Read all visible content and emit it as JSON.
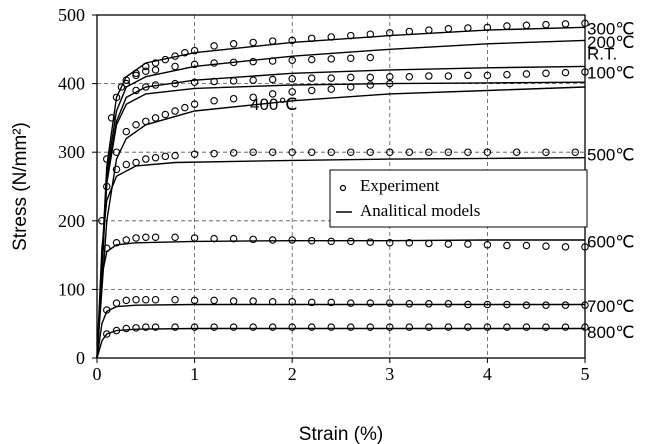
{
  "chart_data": {
    "type": "scatter",
    "title": "",
    "xlabel": "Strain (%)",
    "ylabel": "Stress (N/mm²)",
    "xlim": [
      0,
      5
    ],
    "ylim": [
      0,
      500
    ],
    "xticks": [
      0,
      1,
      2,
      3,
      4,
      5
    ],
    "yticks": [
      0,
      100,
      200,
      300,
      400,
      500
    ],
    "grid": "dashed",
    "legend": {
      "position": "center-right",
      "entries": [
        {
          "label": "Experiment",
          "marker": "circle"
        },
        {
          "label": "Analitical models",
          "marker": "line"
        }
      ]
    },
    "series": [
      {
        "label": "300℃",
        "exp_plateau": 485,
        "model": [
          [
            0,
            0
          ],
          [
            0.1,
            280
          ],
          [
            0.2,
            380
          ],
          [
            0.3,
            410
          ],
          [
            0.5,
            430
          ],
          [
            1,
            445
          ],
          [
            2,
            460
          ],
          [
            3,
            470
          ],
          [
            4,
            478
          ],
          [
            5,
            482
          ]
        ]
      },
      {
        "label": "200℃",
        "exp_plateau": 470,
        "model": [
          [
            0,
            0
          ],
          [
            0.1,
            270
          ],
          [
            0.2,
            360
          ],
          [
            0.3,
            395
          ],
          [
            0.5,
            410
          ],
          [
            1,
            425
          ],
          [
            2,
            440
          ],
          [
            3,
            450
          ],
          [
            4,
            458
          ],
          [
            5,
            463
          ]
        ]
      },
      {
        "label": "R.T.",
        "exp_plateau": 455,
        "model": [
          [
            0,
            0
          ],
          [
            0.1,
            260
          ],
          [
            0.2,
            345
          ],
          [
            0.3,
            380
          ],
          [
            0.5,
            395
          ],
          [
            1,
            405
          ],
          [
            2,
            415
          ],
          [
            3,
            420
          ],
          [
            4,
            423
          ],
          [
            5,
            425
          ]
        ]
      },
      {
        "label": "100℃",
        "exp_plateau": 415,
        "model": [
          [
            0,
            0
          ],
          [
            0.1,
            255
          ],
          [
            0.2,
            340
          ],
          [
            0.3,
            370
          ],
          [
            0.5,
            385
          ],
          [
            1,
            393
          ],
          [
            2,
            398
          ],
          [
            3,
            400
          ],
          [
            4,
            401
          ],
          [
            5,
            402
          ]
        ]
      },
      {
        "label": "400℃",
        "exp_plateau": 420,
        "model": [
          [
            0,
            0
          ],
          [
            0.1,
            200
          ],
          [
            0.2,
            290
          ],
          [
            0.3,
            320
          ],
          [
            0.5,
            340
          ],
          [
            1,
            360
          ],
          [
            2,
            375
          ],
          [
            3,
            385
          ],
          [
            4,
            390
          ],
          [
            5,
            395
          ]
        ]
      },
      {
        "label": "500℃",
        "exp_plateau": 300,
        "model": [
          [
            0,
            0
          ],
          [
            0.05,
            160
          ],
          [
            0.1,
            230
          ],
          [
            0.2,
            265
          ],
          [
            0.4,
            280
          ],
          [
            0.8,
            285
          ],
          [
            2,
            288
          ],
          [
            3,
            290
          ],
          [
            4,
            291
          ],
          [
            5,
            292
          ]
        ]
      },
      {
        "label": "600℃",
        "exp_plateau": 170,
        "model": [
          [
            0,
            0
          ],
          [
            0.05,
            120
          ],
          [
            0.1,
            155
          ],
          [
            0.2,
            165
          ],
          [
            0.4,
            168
          ],
          [
            1,
            170
          ],
          [
            2,
            171
          ],
          [
            3,
            171
          ],
          [
            4,
            172
          ],
          [
            5,
            172
          ]
        ]
      },
      {
        "label": "700℃",
        "exp_plateau": 80,
        "model": [
          [
            0,
            0
          ],
          [
            0.05,
            50
          ],
          [
            0.1,
            68
          ],
          [
            0.2,
            75
          ],
          [
            0.4,
            77
          ],
          [
            1,
            78
          ],
          [
            2,
            78
          ],
          [
            3,
            78
          ],
          [
            4,
            78
          ],
          [
            5,
            78
          ]
        ]
      },
      {
        "label": "800℃",
        "exp_plateau": 44,
        "model": [
          [
            0,
            0
          ],
          [
            0.05,
            25
          ],
          [
            0.1,
            35
          ],
          [
            0.2,
            40
          ],
          [
            0.4,
            42
          ],
          [
            1,
            43
          ],
          [
            2,
            43
          ],
          [
            3,
            43
          ],
          [
            4,
            43
          ],
          [
            5,
            43
          ]
        ]
      }
    ],
    "experiment": [
      {
        "label": "300℃",
        "points": [
          [
            0.05,
            200
          ],
          [
            0.1,
            290
          ],
          [
            0.15,
            350
          ],
          [
            0.2,
            380
          ],
          [
            0.25,
            395
          ],
          [
            0.3,
            405
          ],
          [
            0.4,
            415
          ],
          [
            0.5,
            425
          ],
          [
            0.6,
            430
          ],
          [
            0.7,
            435
          ],
          [
            0.8,
            440
          ],
          [
            0.9,
            445
          ],
          [
            1,
            448
          ],
          [
            1.2,
            455
          ],
          [
            1.4,
            458
          ],
          [
            1.6,
            460
          ],
          [
            1.8,
            462
          ],
          [
            2,
            463
          ],
          [
            2.2,
            466
          ],
          [
            2.4,
            468
          ],
          [
            2.6,
            470
          ],
          [
            2.8,
            472
          ],
          [
            3,
            474
          ],
          [
            3.2,
            476
          ],
          [
            3.4,
            478
          ],
          [
            3.6,
            480
          ],
          [
            3.8,
            481
          ],
          [
            4,
            482
          ],
          [
            4.2,
            484
          ],
          [
            4.4,
            485
          ],
          [
            4.6,
            486
          ],
          [
            4.8,
            487
          ],
          [
            5,
            488
          ]
        ]
      },
      {
        "label": "R.T.",
        "points": [
          [
            0.3,
            400
          ],
          [
            0.4,
            412
          ],
          [
            0.5,
            418
          ],
          [
            0.6,
            420
          ],
          [
            0.8,
            425
          ],
          [
            1,
            428
          ],
          [
            1.2,
            430
          ],
          [
            1.4,
            431
          ],
          [
            1.6,
            432
          ],
          [
            1.8,
            433
          ],
          [
            2,
            434
          ],
          [
            2.2,
            435
          ],
          [
            2.4,
            436
          ],
          [
            2.6,
            437
          ],
          [
            2.8,
            438
          ]
        ]
      },
      {
        "label": "100℃",
        "points": [
          [
            0.4,
            390
          ],
          [
            0.5,
            395
          ],
          [
            0.6,
            398
          ],
          [
            0.8,
            400
          ],
          [
            1,
            402
          ],
          [
            1.2,
            403
          ],
          [
            1.4,
            404
          ],
          [
            1.6,
            405
          ],
          [
            1.8,
            406
          ],
          [
            2,
            407
          ],
          [
            2.2,
            408
          ],
          [
            2.4,
            408
          ],
          [
            2.6,
            409
          ],
          [
            2.8,
            409
          ],
          [
            3,
            410
          ],
          [
            3.2,
            410
          ],
          [
            3.4,
            411
          ],
          [
            3.6,
            411
          ],
          [
            3.8,
            412
          ],
          [
            4,
            412
          ],
          [
            4.2,
            413
          ],
          [
            4.4,
            414
          ],
          [
            4.6,
            415
          ],
          [
            4.8,
            416
          ],
          [
            5,
            417
          ]
        ]
      },
      {
        "label": "400℃",
        "points": [
          [
            0.2,
            300
          ],
          [
            0.3,
            330
          ],
          [
            0.4,
            340
          ],
          [
            0.5,
            345
          ],
          [
            0.6,
            350
          ],
          [
            0.7,
            355
          ],
          [
            0.8,
            360
          ],
          [
            0.9,
            365
          ],
          [
            1,
            370
          ],
          [
            1.2,
            375
          ],
          [
            1.4,
            378
          ],
          [
            1.6,
            380
          ],
          [
            1.8,
            385
          ],
          [
            2,
            388
          ],
          [
            2.2,
            390
          ],
          [
            2.4,
            392
          ],
          [
            2.6,
            395
          ],
          [
            2.8,
            398
          ],
          [
            3,
            400
          ]
        ]
      },
      {
        "label": "500℃",
        "points": [
          [
            0.1,
            250
          ],
          [
            0.2,
            275
          ],
          [
            0.3,
            282
          ],
          [
            0.4,
            285
          ],
          [
            0.5,
            290
          ],
          [
            0.6,
            292
          ],
          [
            0.7,
            294
          ],
          [
            0.8,
            295
          ],
          [
            1,
            297
          ],
          [
            1.2,
            298
          ],
          [
            1.4,
            299
          ],
          [
            1.6,
            300
          ],
          [
            1.8,
            300
          ],
          [
            2,
            300
          ],
          [
            2.2,
            300
          ],
          [
            2.4,
            300
          ],
          [
            2.6,
            300
          ],
          [
            2.8,
            300
          ],
          [
            3,
            300
          ],
          [
            3.2,
            300
          ],
          [
            3.4,
            300
          ],
          [
            3.6,
            300
          ],
          [
            3.8,
            300
          ],
          [
            4,
            300
          ],
          [
            4.3,
            300
          ],
          [
            4.6,
            300
          ],
          [
            4.9,
            300
          ]
        ]
      },
      {
        "label": "600℃",
        "points": [
          [
            0.1,
            160
          ],
          [
            0.2,
            168
          ],
          [
            0.3,
            172
          ],
          [
            0.4,
            175
          ],
          [
            0.5,
            176
          ],
          [
            0.6,
            176
          ],
          [
            0.8,
            176
          ],
          [
            1,
            175
          ],
          [
            1.2,
            174
          ],
          [
            1.4,
            174
          ],
          [
            1.6,
            173
          ],
          [
            1.8,
            172
          ],
          [
            2,
            172
          ],
          [
            2.2,
            171
          ],
          [
            2.4,
            170
          ],
          [
            2.6,
            170
          ],
          [
            2.8,
            169
          ],
          [
            3,
            168
          ],
          [
            3.2,
            168
          ],
          [
            3.4,
            167
          ],
          [
            3.6,
            166
          ],
          [
            3.8,
            166
          ],
          [
            4,
            165
          ],
          [
            4.2,
            164
          ],
          [
            4.4,
            164
          ],
          [
            4.6,
            163
          ],
          [
            4.8,
            162
          ],
          [
            5,
            162
          ]
        ]
      },
      {
        "label": "700℃",
        "points": [
          [
            0.1,
            70
          ],
          [
            0.2,
            80
          ],
          [
            0.3,
            84
          ],
          [
            0.4,
            85
          ],
          [
            0.5,
            85
          ],
          [
            0.6,
            85
          ],
          [
            0.8,
            85
          ],
          [
            1,
            84
          ],
          [
            1.2,
            84
          ],
          [
            1.4,
            83
          ],
          [
            1.6,
            83
          ],
          [
            1.8,
            82
          ],
          [
            2,
            82
          ],
          [
            2.2,
            81
          ],
          [
            2.4,
            81
          ],
          [
            2.6,
            80
          ],
          [
            2.8,
            80
          ],
          [
            3,
            80
          ],
          [
            3.2,
            79
          ],
          [
            3.4,
            79
          ],
          [
            3.6,
            79
          ],
          [
            3.8,
            78
          ],
          [
            4,
            78
          ],
          [
            4.2,
            78
          ],
          [
            4.4,
            77
          ],
          [
            4.6,
            77
          ],
          [
            4.8,
            77
          ],
          [
            5,
            77
          ]
        ]
      },
      {
        "label": "800℃",
        "points": [
          [
            0.1,
            35
          ],
          [
            0.2,
            40
          ],
          [
            0.3,
            43
          ],
          [
            0.4,
            44
          ],
          [
            0.5,
            45
          ],
          [
            0.6,
            45
          ],
          [
            0.8,
            45
          ],
          [
            1,
            45
          ],
          [
            1.2,
            45
          ],
          [
            1.4,
            45
          ],
          [
            1.6,
            45
          ],
          [
            1.8,
            45
          ],
          [
            2,
            45
          ],
          [
            2.2,
            45
          ],
          [
            2.4,
            45
          ],
          [
            2.6,
            45
          ],
          [
            2.8,
            45
          ],
          [
            3,
            45
          ],
          [
            3.2,
            45
          ],
          [
            3.4,
            45
          ],
          [
            3.6,
            45
          ],
          [
            3.8,
            45
          ],
          [
            4,
            45
          ],
          [
            4.2,
            45
          ],
          [
            4.4,
            45
          ],
          [
            4.6,
            45
          ],
          [
            4.8,
            45
          ],
          [
            5,
            45
          ]
        ]
      }
    ]
  }
}
